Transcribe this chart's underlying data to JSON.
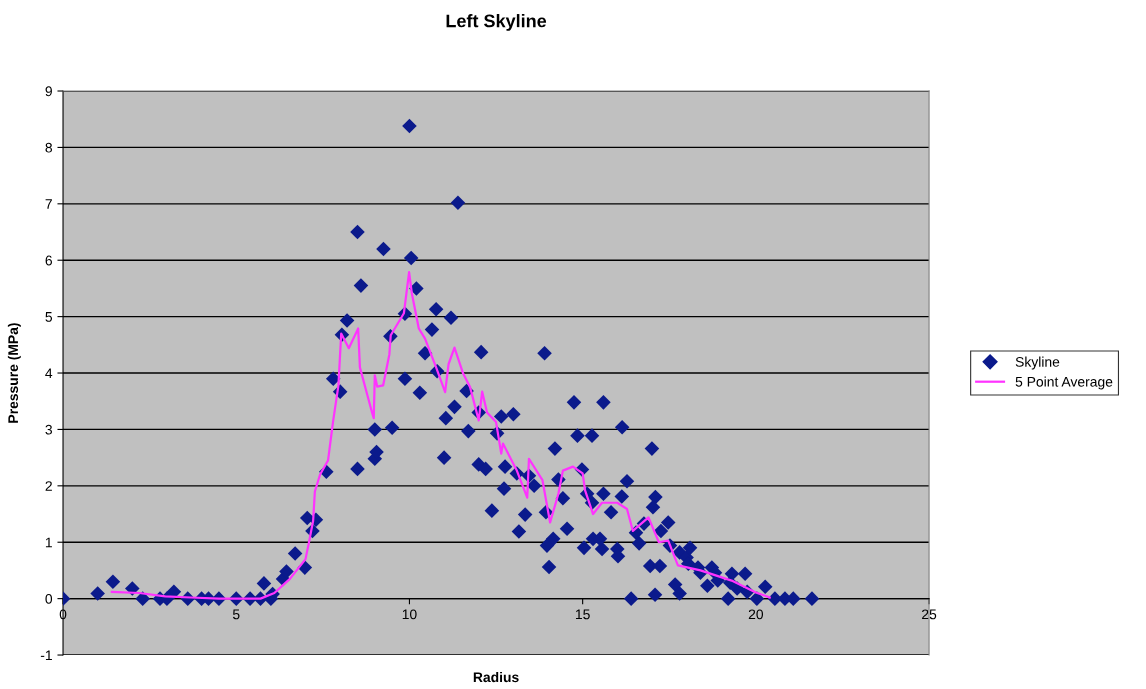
{
  "chart_data": {
    "type": "scatter",
    "title": "Left Skyline",
    "xlabel": "Radius",
    "ylabel": "Pressure (MPa)",
    "xlim": [
      0,
      25
    ],
    "xticks": [
      0,
      5,
      10,
      15,
      20,
      25
    ],
    "ylim": [
      -1,
      9
    ],
    "yticks": [
      -1,
      0,
      1,
      2,
      3,
      4,
      5,
      6,
      7,
      8,
      9
    ],
    "grid": "y",
    "legend": "right",
    "series": [
      {
        "name": "Skyline",
        "marker": "diamond",
        "color": "#0b1a8c",
        "x": [
          0,
          1.0,
          1.44,
          2.0,
          2.3,
          2.8,
          3.0,
          3.2,
          3.6,
          4.0,
          4.2,
          4.5,
          5.0,
          5.4,
          5.7,
          5.8,
          6.0,
          6.05,
          6.35,
          6.45,
          6.7,
          6.98,
          7.05,
          7.3,
          7.2,
          7.6,
          7.8,
          8.0,
          8.05,
          8.2,
          8.5,
          8.6,
          8.5,
          9.0,
          9.0,
          9.05,
          9.25,
          9.45,
          9.5,
          9.87,
          9.87,
          10.0,
          10.05,
          10.2,
          10.3,
          10.45,
          10.65,
          10.77,
          10.8,
          11.0,
          11.05,
          11.2,
          11.3,
          11.4,
          11.65,
          11.7,
          12.07,
          13.9,
          12.0,
          12.65,
          13.0,
          12.53,
          12.0,
          12.2,
          12.76,
          13.1,
          12.73,
          12.38,
          13.45,
          13.6,
          13.34,
          13.16,
          14.2,
          14.75,
          15.6,
          14.85,
          15.27,
          16.14,
          14.3,
          14.98,
          13.94,
          14.43,
          14.55,
          15.13,
          15.27,
          15.6,
          15.82,
          16.13,
          16.28,
          17.0,
          17.1,
          17.03,
          14.15,
          13.97,
          14.03,
          15.3,
          15.56,
          15.04,
          15.5,
          16.0,
          16.02,
          16.77,
          16.54,
          16.63,
          17.26,
          17.47,
          17.52,
          16.95,
          17.23,
          16.4,
          17.09,
          17.67,
          17.8,
          17.8,
          18.0,
          18.1,
          18.05,
          18.33,
          18.4,
          18.73,
          18.82,
          19.69,
          19.31,
          18.6,
          18.9,
          19.26,
          19.46,
          19.75,
          20.27,
          20.03,
          19.2,
          20.55,
          20.84,
          21.08,
          21.62
        ],
        "values": [
          0,
          0.09,
          0.3,
          0.18,
          0,
          0,
          0,
          0.12,
          0,
          0,
          0,
          0,
          0,
          0,
          0,
          0.27,
          0,
          0.08,
          0.35,
          0.48,
          0.8,
          0.55,
          1.43,
          1.4,
          1.2,
          2.25,
          3.9,
          3.67,
          4.68,
          4.93,
          6.5,
          5.55,
          2.3,
          3.0,
          2.48,
          2.6,
          6.2,
          4.65,
          3.03,
          3.9,
          5.05,
          8.38,
          6.04,
          5.5,
          3.65,
          4.35,
          4.77,
          5.13,
          4.03,
          2.5,
          3.2,
          4.98,
          3.4,
          7.02,
          3.68,
          2.97,
          4.37,
          4.35,
          3.3,
          3.23,
          3.27,
          2.93,
          2.38,
          2.3,
          2.34,
          2.22,
          1.95,
          1.56,
          2.18,
          2.0,
          1.49,
          1.19,
          2.66,
          3.48,
          3.48,
          2.89,
          2.89,
          3.04,
          2.11,
          2.29,
          1.53,
          1.78,
          1.24,
          1.86,
          1.7,
          1.86,
          1.53,
          1.81,
          2.08,
          2.66,
          1.8,
          1.62,
          1.06,
          0.94,
          0.56,
          1.06,
          0.88,
          0.9,
          1.06,
          0.88,
          0.75,
          1.33,
          1.17,
          0.98,
          1.2,
          1.35,
          0.94,
          0.58,
          0.58,
          0,
          0.07,
          0.25,
          0.09,
          0.82,
          0.73,
          0.9,
          0.62,
          0.55,
          0.46,
          0.55,
          0.46,
          0.44,
          0.44,
          0.23,
          0.32,
          0.28,
          0.18,
          0.12,
          0.21,
          0,
          0,
          0,
          0,
          0,
          0
        ]
      },
      {
        "name": "5 Point Average",
        "type": "line",
        "marker": "none",
        "line_style": "solid",
        "color": "#ff33ff",
        "x": [
          1.41,
          2.2,
          2.95,
          3.7,
          4.5,
          5.7,
          6.1,
          6.55,
          7.0,
          7.1,
          7.22,
          7.27,
          7.42,
          7.65,
          7.8,
          7.95,
          8.03,
          8.25,
          8.52,
          8.57,
          8.92,
          8.97,
          9.0,
          9.07,
          9.24,
          9.42,
          9.46,
          9.84,
          9.99,
          10.07,
          10.27,
          10.45,
          10.77,
          11.03,
          11.13,
          11.3,
          11.55,
          11.75,
          12.0,
          12.1,
          12.24,
          12.5,
          12.65,
          12.7,
          13.1,
          13.4,
          13.45,
          13.84,
          14.06,
          14.3,
          14.43,
          14.72,
          15.0,
          15.07,
          15.3,
          15.56,
          16.0,
          16.28,
          16.45,
          16.9,
          17.2,
          17.47,
          17.75,
          18.4,
          19.3,
          20.0,
          20.4
        ],
        "values": [
          0.12,
          0.1,
          0.04,
          0.02,
          0,
          0,
          0.1,
          0.35,
          0.7,
          1.0,
          1.38,
          1.9,
          2.2,
          2.45,
          3.16,
          3.78,
          4.7,
          4.44,
          4.79,
          4.1,
          3.3,
          3.2,
          3.96,
          3.76,
          3.78,
          4.33,
          4.67,
          5.06,
          5.79,
          5.41,
          4.79,
          4.61,
          4.1,
          3.66,
          4.16,
          4.45,
          3.99,
          3.75,
          3.16,
          3.67,
          3.3,
          3.13,
          2.57,
          2.75,
          2.27,
          1.79,
          2.48,
          2.1,
          1.35,
          1.86,
          2.27,
          2.34,
          2.22,
          1.92,
          1.5,
          1.7,
          1.7,
          1.59,
          1.2,
          1.44,
          1.0,
          1.03,
          0.59,
          0.5,
          0.32,
          0.11,
          0.02
        ]
      }
    ]
  }
}
